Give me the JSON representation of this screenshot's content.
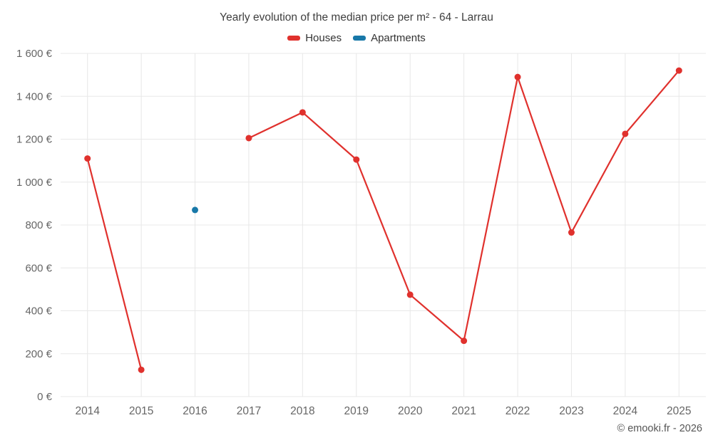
{
  "title": "Yearly evolution of the median price per m² - 64 - Larrau",
  "legend": [
    {
      "label": "Houses",
      "color": "#e0312d"
    },
    {
      "label": "Apartments",
      "color": "#1878a8"
    }
  ],
  "watermark": "© emooki.fr - 2026",
  "colors": {
    "grid": "#e8e8e8",
    "tick_text": "#666666",
    "title_text": "#3f3f3f"
  },
  "chart_data": {
    "type": "line",
    "title": "Yearly evolution of the median price per m² - 64 - Larrau",
    "x": [
      2014,
      2015,
      2016,
      2017,
      2018,
      2019,
      2020,
      2021,
      2022,
      2023,
      2024,
      2025
    ],
    "series": [
      {
        "name": "Houses",
        "color": "#e0312d",
        "values": [
          1110,
          125,
          null,
          1205,
          1325,
          1105,
          475,
          260,
          1490,
          765,
          1225,
          1520
        ]
      },
      {
        "name": "Apartments",
        "color": "#1878a8",
        "values": [
          null,
          null,
          870,
          null,
          null,
          null,
          null,
          null,
          null,
          null,
          null,
          null
        ]
      }
    ],
    "xlabel": "",
    "ylabel": "",
    "ylim": [
      0,
      1600
    ],
    "ytick_step": 200,
    "ytick_suffix": " €",
    "grid": true,
    "legend_position": "top"
  }
}
